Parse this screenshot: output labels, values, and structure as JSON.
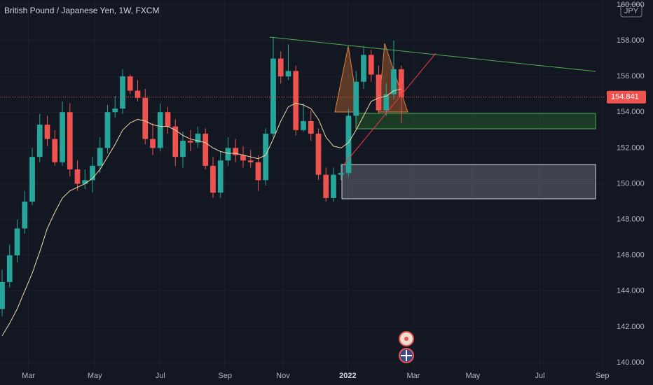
{
  "chart_data": {
    "type": "candlestick",
    "title": "British Pound / Japanese Yen, 1W, FXCM",
    "currency": "JPY",
    "categories": [
      null,
      null,
      null,
      null,
      null,
      null,
      null,
      null,
      null,
      null,
      null,
      null,
      null,
      null,
      null,
      null,
      null,
      null,
      null,
      null,
      null,
      null,
      null,
      null,
      null,
      null,
      null,
      null,
      null,
      null,
      null,
      null,
      null,
      null,
      null,
      null,
      null,
      null,
      null,
      null,
      null,
      null,
      null,
      null,
      null,
      null,
      null,
      null,
      null,
      null,
      null,
      null,
      null,
      null
    ],
    "open": [
      143,
      144.5,
      146,
      147.5,
      149,
      151.5,
      153.3,
      152.5,
      151.2,
      154,
      150.8,
      150,
      150.2,
      151,
      152,
      154,
      154.2,
      156,
      155.2,
      154.8,
      152.5,
      152,
      154,
      153.2,
      151.5,
      152.4,
      152.3,
      152.8,
      151,
      149.5,
      151.3,
      152,
      151.6,
      151.3,
      151.2,
      150.2,
      152.8,
      157,
      156,
      156.3,
      153,
      153.5,
      152.8,
      150.5,
      149.2,
      150.5,
      150.6,
      153.8,
      155.7,
      157.2,
      156.1,
      154.1,
      155,
      156.4
    ],
    "high": [
      145.2,
      146.6,
      148,
      149.6,
      152,
      153.9,
      153.8,
      153,
      154.6,
      154.5,
      151.3,
      150.8,
      151.5,
      152.6,
      154.4,
      154.9,
      156.4,
      156.1,
      155.8,
      155.3,
      153.4,
      154.5,
      154.3,
      153.6,
      152.9,
      153,
      153.2,
      153.1,
      151.5,
      151.8,
      152.6,
      152.5,
      152.1,
      151.9,
      151.6,
      153.1,
      158.2,
      157.4,
      157.8,
      156.6,
      154.5,
      154.1,
      153.1,
      150.9,
      150.9,
      151.1,
      154.2,
      156.3,
      157.7,
      157.5,
      156.6,
      155.6,
      158,
      156.6
    ],
    "low": [
      142.6,
      144.2,
      145.6,
      147.2,
      148.8,
      151.2,
      152.1,
      151,
      151,
      150.4,
      149.6,
      149.7,
      149.5,
      150.6,
      151.7,
      153.7,
      153.9,
      155,
      154.6,
      152.2,
      151.6,
      151.8,
      152.8,
      151,
      150.9,
      151.8,
      152,
      150.8,
      149.2,
      149.2,
      151,
      151.2,
      150.9,
      150.9,
      149.6,
      149.9,
      152.6,
      155.6,
      155.8,
      152.7,
      152.9,
      152.4,
      150.2,
      149,
      149,
      150.2,
      150.4,
      153.4,
      155.3,
      155.7,
      153.9,
      153.8,
      154.7,
      153.4
    ],
    "close": [
      144.5,
      146,
      147.5,
      149,
      151.5,
      153.3,
      152.5,
      151.2,
      154,
      150.8,
      150,
      150.2,
      151,
      152,
      154,
      154.2,
      156,
      155.2,
      154.8,
      152.5,
      152,
      154,
      153.2,
      151.5,
      152.4,
      152.3,
      152.8,
      151,
      149.5,
      151.3,
      152,
      151.6,
      151.3,
      151.2,
      150.2,
      152.8,
      157,
      156,
      156.3,
      153,
      153.5,
      152.8,
      150.5,
      149.2,
      150.5,
      150.6,
      153.8,
      155.7,
      157.2,
      156.1,
      154.1,
      155,
      156.4,
      154.841
    ],
    "up_color": "#26a69a",
    "down_color": "#ef5350",
    "ma": {
      "color": "#f0d9a8",
      "values": [
        141.5,
        142.2,
        143,
        144,
        145,
        146.2,
        147.5,
        148.4,
        149.2,
        149.6,
        149.8,
        150,
        150.3,
        150.8,
        151.5,
        152.2,
        153,
        153.4,
        153.6,
        153.5,
        153.3,
        153.2,
        153.2,
        153,
        152.7,
        152.5,
        152.4,
        152.3,
        152,
        151.8,
        151.7,
        151.7,
        151.6,
        151.5,
        151.4,
        151.6,
        152.5,
        153.5,
        154.3,
        154.5,
        154.4,
        154.2,
        153.6,
        152.6,
        152.1,
        152,
        152.3,
        153,
        153.8,
        154.6,
        154.8,
        154.9,
        155.2,
        155.3
      ]
    },
    "last_price": 154.841,
    "xlim": [
      -0.28,
      79.91
    ],
    "xticks": [
      {
        "value": 3.5,
        "label": "Mar"
      },
      {
        "value": 12.3,
        "label": "May"
      },
      {
        "value": 21,
        "label": "Jul"
      },
      {
        "value": 29.6,
        "label": "Sep"
      },
      {
        "value": 37.3,
        "label": "Nov"
      },
      {
        "value": 45.9,
        "label": "2022"
      },
      {
        "value": 54.6,
        "label": "Mar"
      },
      {
        "value": 62.5,
        "label": "May"
      },
      {
        "value": 71.4,
        "label": "Jul"
      },
      {
        "value": 79.7,
        "label": "Sep"
      }
    ],
    "ylim": [
      139.61,
      160.27
    ],
    "yticks": [
      {
        "value": 140,
        "label": "140.000"
      },
      {
        "value": 142,
        "label": "142.000"
      },
      {
        "value": 144,
        "label": "144.000"
      },
      {
        "value": 146,
        "label": "146.000"
      },
      {
        "value": 148,
        "label": "148.000"
      },
      {
        "value": 150,
        "label": "150.000"
      },
      {
        "value": 152,
        "label": "152.000"
      },
      {
        "value": 154,
        "label": "154.000"
      },
      {
        "value": 156,
        "label": "156.000"
      },
      {
        "value": 158,
        "label": "158.000"
      },
      {
        "value": 160,
        "label": "160.000"
      }
    ],
    "grid": true
  }
}
